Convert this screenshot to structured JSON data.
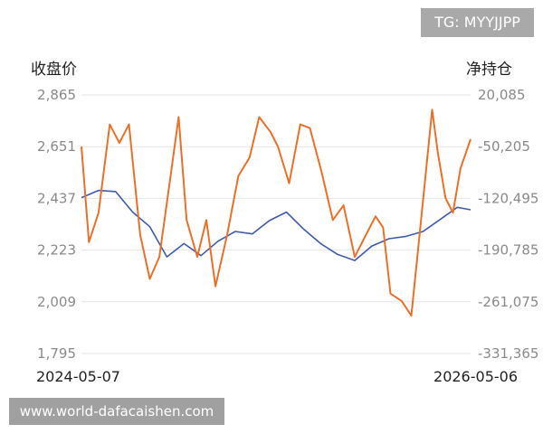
{
  "badge": {
    "text": "TG: MYYJJPP"
  },
  "watermark": {
    "text": "www.world-dafacaishen.com"
  },
  "colors": {
    "close_line": "#3f5ba8",
    "position_line": "#e8702a",
    "grid": "#e6e6e6"
  },
  "chart_data": {
    "type": "line",
    "y_left_title": "收盘价",
    "y_right_title": "净持仓",
    "y_left_ticks": [
      "2,865",
      "2,651",
      "2,437",
      "2,223",
      "2,009",
      "1,795"
    ],
    "y_right_ticks": [
      "20,085",
      "-50,205",
      "-120,495",
      "-190,785",
      "-261,075",
      "-331,365"
    ],
    "y_left_range": [
      1795,
      2865
    ],
    "y_right_range": [
      -331365,
      20085
    ],
    "x_ticks": [
      "2024-05-07",
      "2026-05-06"
    ],
    "x_range": [
      "2024-05-07",
      "2026-05-06"
    ],
    "grid": true,
    "series": [
      {
        "name": "收盘价",
        "axis": "left",
        "x": [
          "2024-05-07",
          "2024-06-08",
          "2024-07-10",
          "2024-08-11",
          "2024-09-12",
          "2024-10-14",
          "2024-11-15",
          "2024-12-17",
          "2025-01-18",
          "2025-02-19",
          "2025-03-23",
          "2025-04-24",
          "2025-05-26",
          "2025-06-27",
          "2025-07-29",
          "2025-08-30",
          "2025-10-01",
          "2025-11-02",
          "2025-12-04",
          "2026-01-05",
          "2026-02-06",
          "2026-03-10",
          "2026-04-11",
          "2026-05-06"
        ],
        "values": [
          2440,
          2470,
          2465,
          2380,
          2320,
          2195,
          2250,
          2200,
          2260,
          2300,
          2290,
          2345,
          2380,
          2310,
          2250,
          2205,
          2180,
          2240,
          2270,
          2280,
          2300,
          2350,
          2400,
          2390
        ]
      },
      {
        "name": "净持仓",
        "axis": "right",
        "x": [
          "2024-05-07",
          "2024-05-21",
          "2024-06-08",
          "2024-06-29",
          "2024-07-17",
          "2024-08-04",
          "2024-08-25",
          "2024-09-12",
          "2024-09-30",
          "2024-10-21",
          "2024-11-05",
          "2024-11-20",
          "2024-12-10",
          "2024-12-27",
          "2025-01-13",
          "2025-02-04",
          "2025-02-25",
          "2025-03-18",
          "2025-04-05",
          "2025-04-26",
          "2025-05-10",
          "2025-05-31",
          "2025-06-21",
          "2025-07-09",
          "2025-07-31",
          "2025-08-21",
          "2025-09-10",
          "2025-10-01",
          "2025-10-22",
          "2025-11-09",
          "2025-11-23",
          "2025-12-07",
          "2025-12-28",
          "2026-01-15",
          "2026-01-29",
          "2026-02-12",
          "2026-02-23",
          "2026-03-06",
          "2026-03-20",
          "2026-04-03",
          "2026-04-17",
          "2026-05-06"
        ],
        "values": [
          -50000,
          -180000,
          -140000,
          -20000,
          -45000,
          -20000,
          -170000,
          -230000,
          -200000,
          -90000,
          -10000,
          -150000,
          -200000,
          -150000,
          -240000,
          -170000,
          -90000,
          -65000,
          -10000,
          -30000,
          -50000,
          -100000,
          -20000,
          -25000,
          -85000,
          -150000,
          -130000,
          -200000,
          -170000,
          -145000,
          -160000,
          -250000,
          -260000,
          -280000,
          -180000,
          -80000,
          0,
          -60000,
          -120000,
          -140000,
          -80000,
          -40000
        ]
      }
    ]
  }
}
